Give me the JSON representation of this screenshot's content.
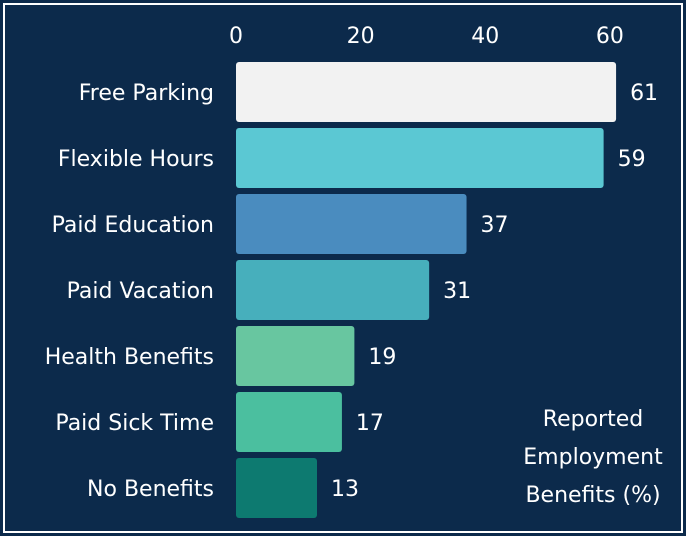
{
  "chart_data": {
    "type": "bar",
    "orientation": "horizontal",
    "title": "Reported Employment Benefits (%)",
    "categories": [
      "Free Parking",
      "Flexible Hours",
      "Paid Education",
      "Paid Vacation",
      "Health Benefits",
      "Paid Sick Time",
      "No Benefits"
    ],
    "values": [
      61,
      59,
      37,
      31,
      19,
      17,
      13
    ],
    "colors": [
      "#f2f2f2",
      "#5bc8d3",
      "#4a8cbf",
      "#47afbc",
      "#68c6a0",
      "#4bbf9f",
      "#0d7a70"
    ],
    "xlim": [
      0,
      65
    ],
    "xticks": [
      0,
      20,
      40,
      60
    ],
    "grid": false
  }
}
